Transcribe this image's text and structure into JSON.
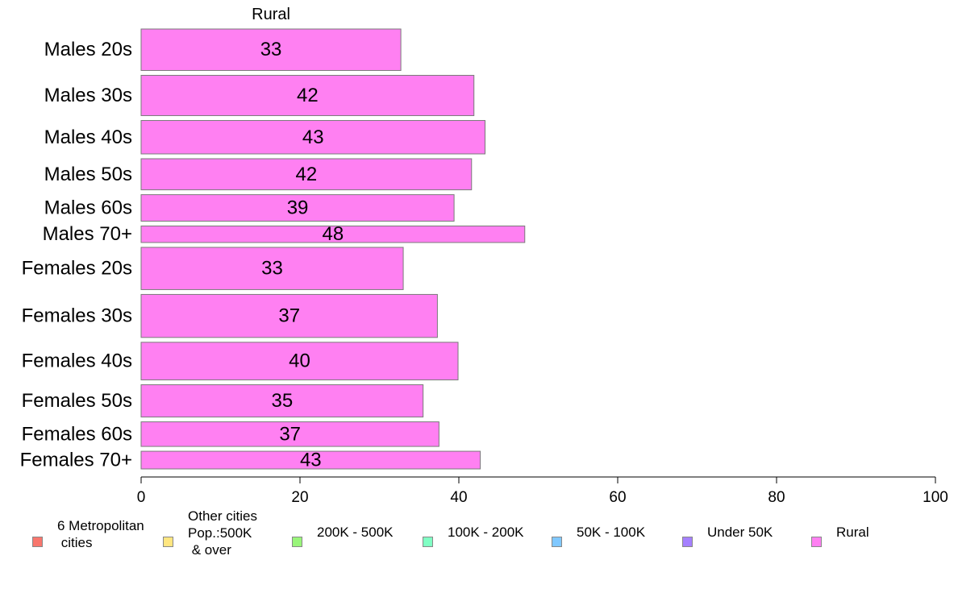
{
  "chart_data": {
    "type": "bar",
    "orientation": "horizontal",
    "title": "Rural",
    "categories": [
      "Males 20s",
      "Males 30s",
      "Males 40s",
      "Males 50s",
      "Males 60s",
      "Males 70+",
      "Females 20s",
      "Females 30s",
      "Females 40s",
      "Females 50s",
      "Females 60s",
      "Females 70+"
    ],
    "category_weights": [
      1.08,
      1.05,
      0.87,
      0.81,
      0.69,
      0.43,
      1.1,
      1.12,
      0.98,
      0.84,
      0.64,
      0.46
    ],
    "values": [
      32.7,
      41.9,
      43.3,
      41.6,
      39.4,
      48.3,
      33.0,
      37.3,
      39.9,
      35.5,
      37.5,
      42.7
    ],
    "data_labels": [
      "33",
      "42",
      "43",
      "42",
      "39",
      "48",
      "33",
      "37",
      "40",
      "35",
      "37",
      "43"
    ],
    "bar_color": "#ff80f2",
    "xlim": [
      0,
      100
    ],
    "xticks": [
      0,
      20,
      40,
      60,
      80,
      100
    ],
    "xtick_labels": [
      "0",
      "20",
      "40",
      "60",
      "80",
      "100"
    ],
    "grid": false,
    "legend_position": "bottom",
    "legend": [
      {
        "label": "6 Metropolitan\n cities",
        "color": "#f8766d"
      },
      {
        "label": "Other cities\nPop.:500K\n & over",
        "color": "#ffe680"
      },
      {
        "label": "200K - 500K",
        "color": "#99f57a"
      },
      {
        "label": "100K - 200K",
        "color": "#80ffc4"
      },
      {
        "label": "50K - 100K",
        "color": "#80c8ff"
      },
      {
        "label": "Under 50K",
        "color": "#a580ff"
      },
      {
        "label": "Rural",
        "color": "#ff80f2"
      }
    ]
  }
}
